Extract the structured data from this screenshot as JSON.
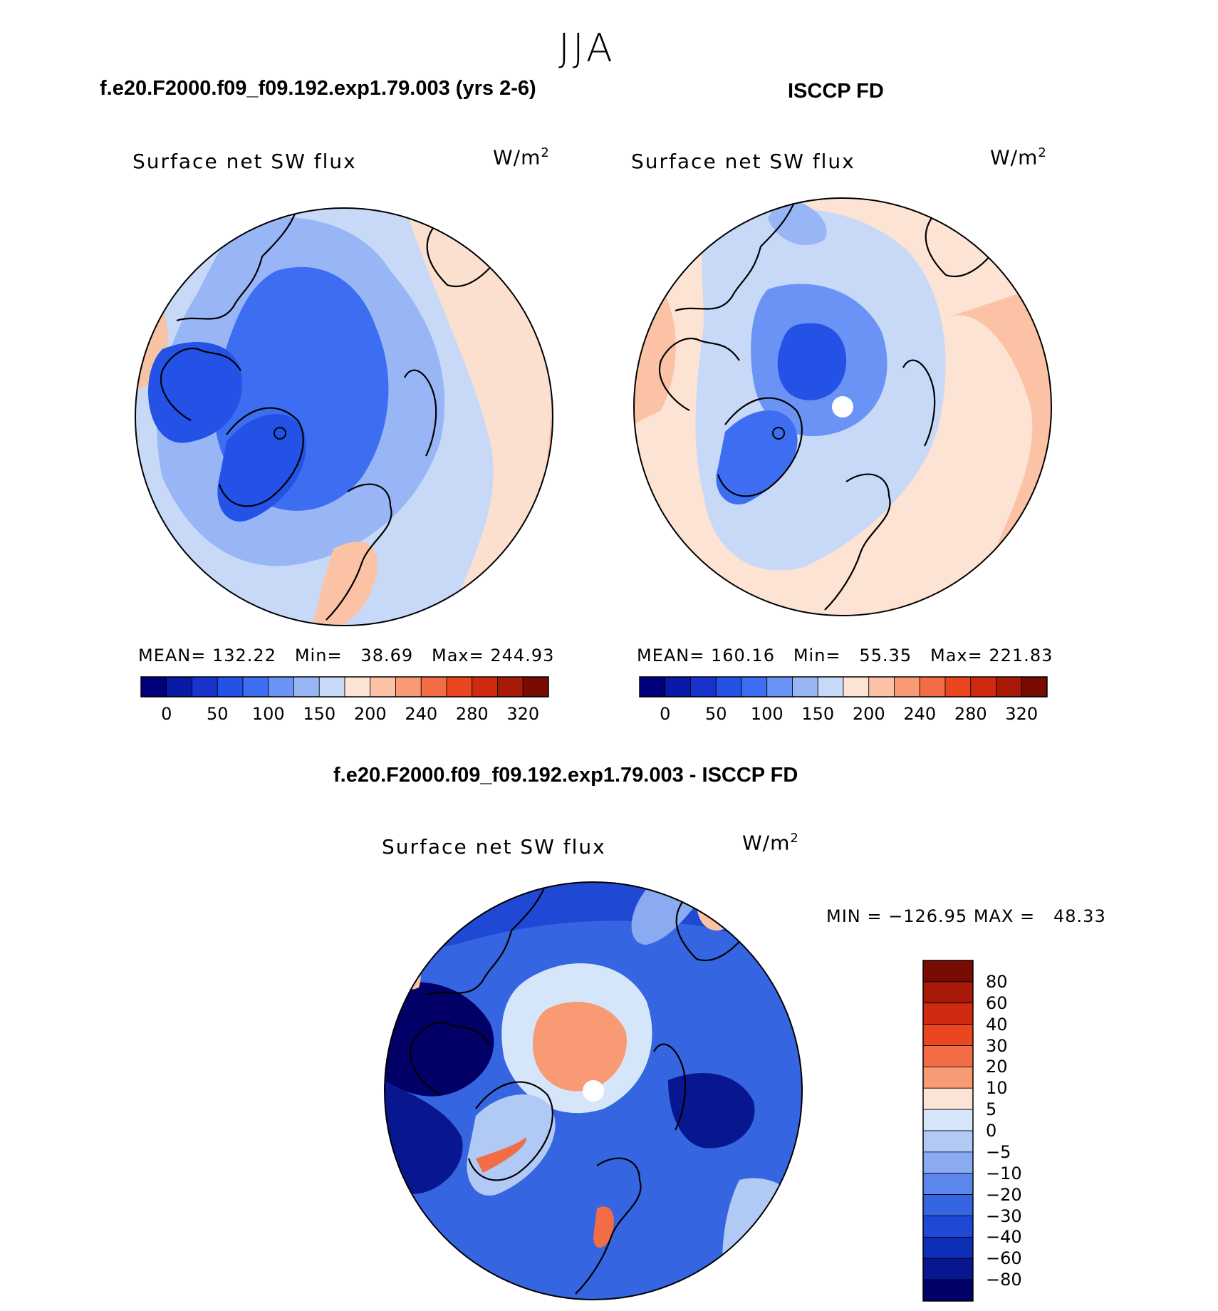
{
  "season": "JJA",
  "panels": [
    {
      "case_title": "f.e20.F2000.f09_f09.192.exp1.79.003 (yrs 2-6)",
      "variable": "Surface net SW flux",
      "units_base": "W/m",
      "units_exp": "2",
      "stats": "MEAN= 132.22   Min=   38.69   Max= 244.93"
    },
    {
      "case_title": "ISCCP FD",
      "variable": "Surface net SW flux",
      "units_base": "W/m",
      "units_exp": "2",
      "stats": "MEAN= 160.16   Min=   55.35   Max= 221.83"
    }
  ],
  "diff_panel": {
    "case_title": "f.e20.F2000.f09_f09.192.exp1.79.003 - ISCCP FD",
    "variable": "Surface net SW flux",
    "units_base": "W/m",
    "units_exp": "2",
    "stats": "MIN = −126.95 MAX =   48.33"
  },
  "colorbar_main": {
    "colors": [
      "#00007a",
      "#0a1aa6",
      "#1a33cc",
      "#2452e6",
      "#3d6ef2",
      "#6b93f5",
      "#98b6f5",
      "#c7d9f7",
      "#fde3d3",
      "#fbc2a6",
      "#f89a74",
      "#f26d45",
      "#ea4620",
      "#d02a10",
      "#a81a08",
      "#780c03"
    ],
    "labels": [
      "0",
      "50",
      "100",
      "150",
      "200",
      "240",
      "280",
      "320"
    ]
  },
  "colorbar_diff": {
    "colors": [
      "#780c03",
      "#a81a08",
      "#d02a10",
      "#ea4620",
      "#f26d45",
      "#f89a74",
      "#fde3d3",
      "#d6e6fa",
      "#b1c9f5",
      "#8aabf2",
      "#5b86ec",
      "#3565e0",
      "#1f48d4",
      "#0f2eb8",
      "#08168f",
      "#000066"
    ],
    "labels": [
      "80",
      "60",
      "40",
      "30",
      "20",
      "10",
      "5",
      "0",
      "−5",
      "−10",
      "−20",
      "−30",
      "−40",
      "−60",
      "−80"
    ]
  }
}
